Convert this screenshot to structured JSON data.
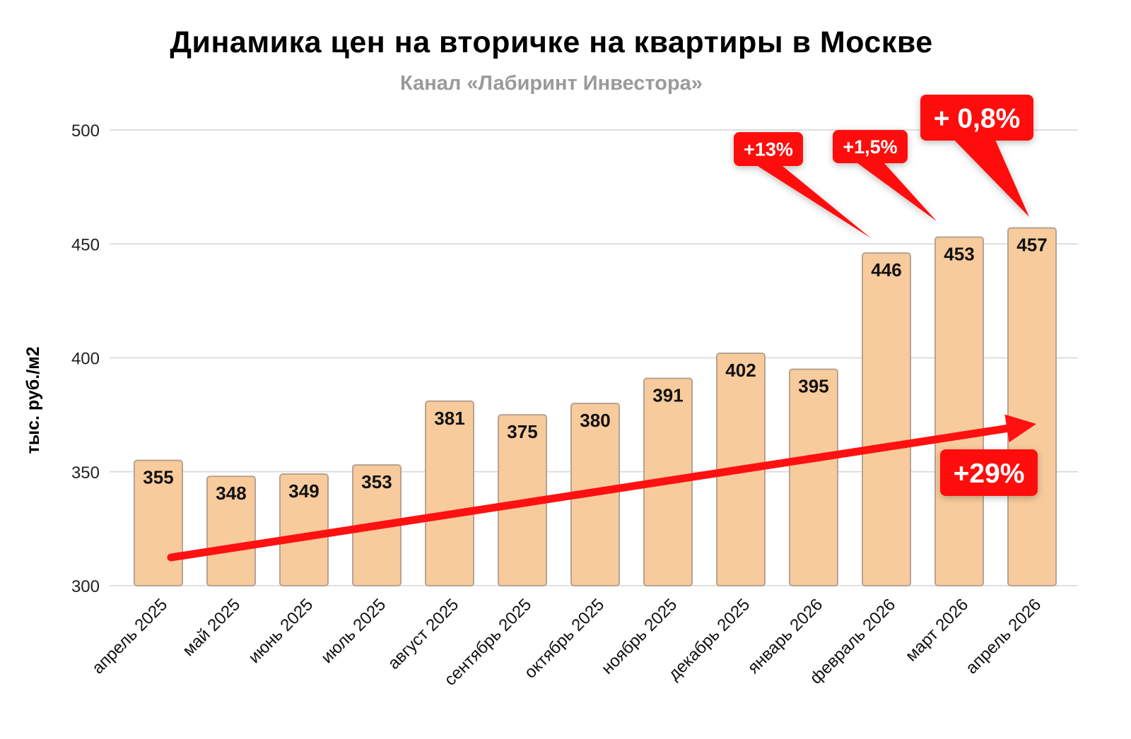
{
  "chart_data": {
    "type": "bar",
    "title": "Динамика цен на вторичке на квартиры в Москве",
    "subtitle": "Канал «Лабиринт Инвестора»",
    "ylabel": "тыс. руб./м2",
    "xlabel": "",
    "ylim": [
      300,
      500
    ],
    "yticks": [
      300,
      350,
      400,
      450,
      500
    ],
    "grid": true,
    "categories": [
      "апрель 2025",
      "май 2025",
      "июнь 2025",
      "июль 2025",
      "август 2025",
      "сентябрь 2025",
      "октябрь 2025",
      "ноябрь 2025",
      "декабрь 2025",
      "январь 2026",
      "февраль 2026",
      "март 2026",
      "апрель 2026"
    ],
    "values": [
      355,
      348,
      349,
      353,
      381,
      375,
      380,
      391,
      402,
      395,
      446,
      453,
      457
    ],
    "bar_color": "#f8cb9c",
    "annotation_color": "#ff1111",
    "annotations": [
      {
        "text": "+13%",
        "target": "февраль 2026"
      },
      {
        "text": "+1,5%",
        "target": "март 2026"
      },
      {
        "text": "+ 0,8%",
        "target": "апрель 2026"
      },
      {
        "text": "+29%",
        "target": "trend"
      }
    ]
  }
}
